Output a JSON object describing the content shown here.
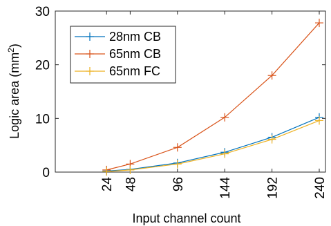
{
  "chart_data": {
    "type": "line",
    "xlabel": "Input channel count",
    "ylabel": "Logic area (mm",
    "ylabel_sup": "2",
    "ylabel_tail": ")",
    "x": [
      24,
      48,
      96,
      144,
      192,
      240
    ],
    "x_ticks": [
      "24",
      "48",
      "96",
      "144",
      "192",
      "240"
    ],
    "y_ticks": [
      "0",
      "10",
      "20",
      "30"
    ],
    "xlim": [
      0,
      240
    ],
    "ylim": [
      0,
      30
    ],
    "grid": false,
    "legend_placement": "top-left",
    "marker": "plus",
    "series": [
      {
        "name": "28nm CB",
        "color": "#0072BD",
        "values": [
          0.2,
          0.5,
          1.7,
          3.7,
          6.5,
          10.2
        ]
      },
      {
        "name": "65nm CB",
        "color": "#D95319",
        "values": [
          0.4,
          1.5,
          4.6,
          10.2,
          18.0,
          27.8
        ]
      },
      {
        "name": "65nm FC",
        "color": "#EDB120",
        "values": [
          0.1,
          0.4,
          1.5,
          3.4,
          6.1,
          9.6
        ]
      }
    ]
  }
}
